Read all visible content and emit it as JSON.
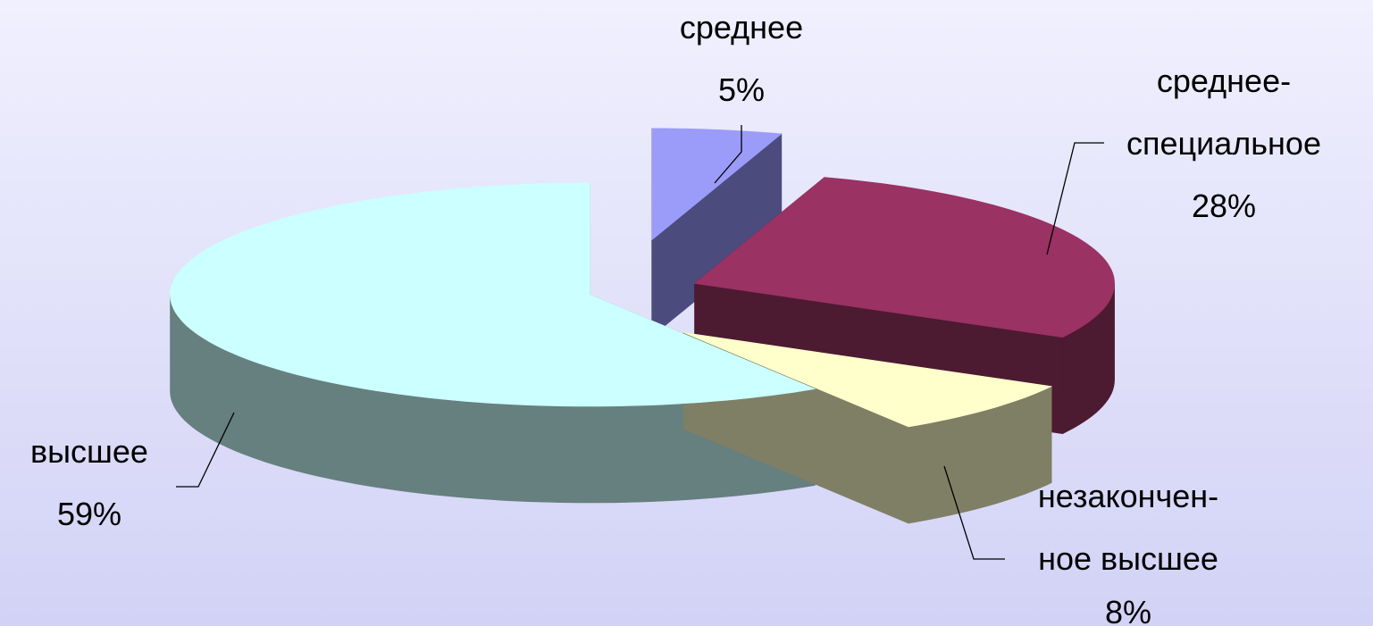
{
  "chart_data": {
    "type": "pie",
    "style": "3d-exploded",
    "title": "",
    "slices": [
      {
        "label_lines": [
          "среднее"
        ],
        "pct_label": "5%",
        "value": 5,
        "top": "#9b9bf9",
        "side": "#4b4b7d"
      },
      {
        "label_lines": [
          "среднее-",
          "специальное"
        ],
        "pct_label": "28%",
        "value": 28,
        "top": "#9a3263",
        "side": "#4c1a31"
      },
      {
        "label_lines": [
          "незакончен-",
          "ное высшее"
        ],
        "pct_label": "8%",
        "value": 8,
        "top": "#ffffcc",
        "side": "#7f7f66"
      },
      {
        "label_lines": [
          "высшее"
        ],
        "pct_label": "59%",
        "value": 59,
        "top": "#ccffff",
        "side": "#667f7f"
      }
    ]
  }
}
